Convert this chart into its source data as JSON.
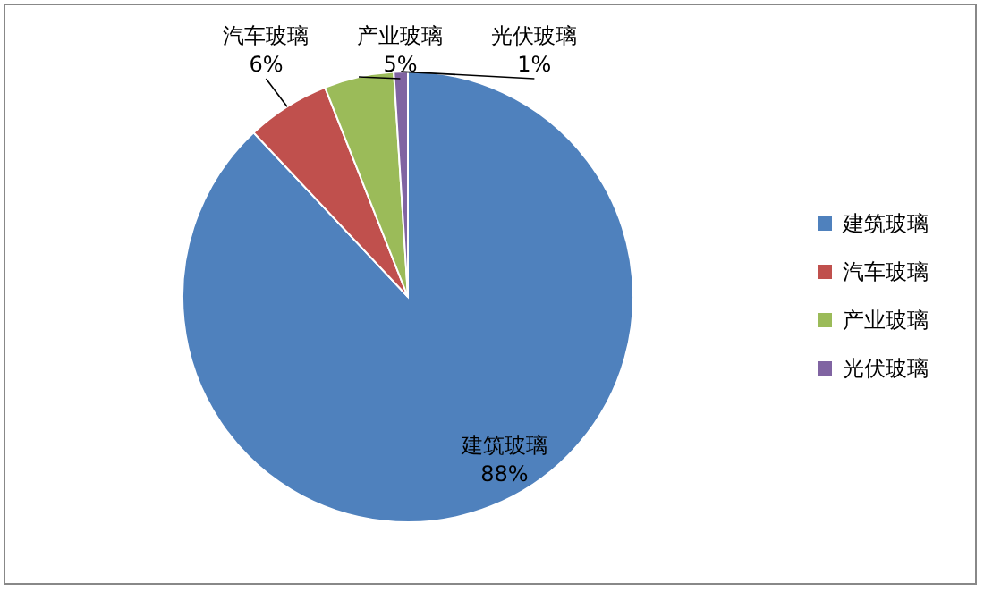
{
  "chart_data": {
    "type": "pie",
    "categories": [
      "建筑玻璃",
      "汽车玻璃",
      "产业玻璃",
      "光伏玻璃"
    ],
    "values": [
      88,
      6,
      5,
      1
    ],
    "value_labels": [
      "88%",
      "6%",
      "5%",
      "1%"
    ],
    "colors": [
      "#4f81bd",
      "#c0504d",
      "#9bbb59",
      "#8064a2"
    ],
    "legend": "right"
  }
}
